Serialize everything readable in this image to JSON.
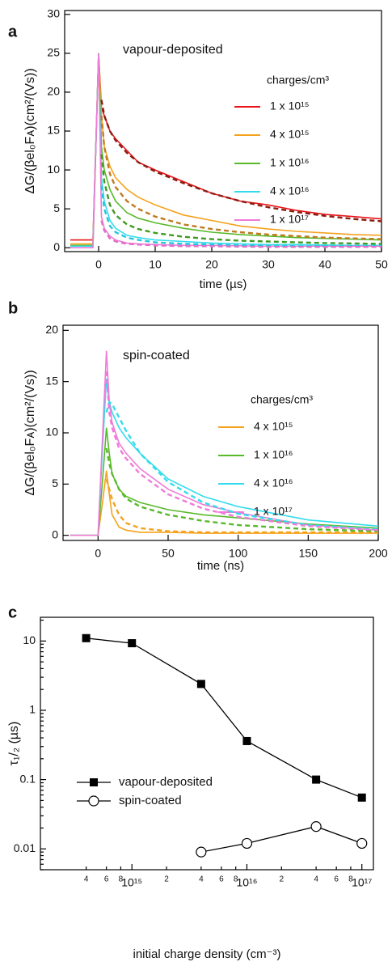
{
  "chart_data": [
    {
      "type": "line",
      "panel": "a",
      "title": "vapour-deposited",
      "legend_title": "charges/cm³",
      "x_label": "time (µs)",
      "y_label": "ΔG/(βel₀Fᴀ)(cm²/(Vs))",
      "x": [
        -5,
        -1,
        0,
        0.5,
        1,
        2,
        3,
        5,
        7,
        10,
        15,
        20,
        25,
        30,
        35,
        40,
        45,
        50
      ],
      "series": [
        {
          "name": "1 x 10¹⁵",
          "color": "#e8141a",
          "values": [
            1,
            1,
            25,
            18,
            17,
            15,
            14,
            12.5,
            11,
            10,
            8.5,
            7,
            6,
            5.5,
            4.8,
            4.3,
            4,
            3.7
          ]
        },
        {
          "name": "4 x 10¹⁵",
          "color": "#f4a21c",
          "values": [
            0.5,
            0.5,
            25,
            17,
            13,
            10.5,
            9,
            7.5,
            6.5,
            5.5,
            4.2,
            3.5,
            2.8,
            2.4,
            2.1,
            1.9,
            1.7,
            1.6
          ]
        },
        {
          "name": "1 x 10¹⁶",
          "color": "#58b92a",
          "values": [
            0.3,
            0.3,
            25,
            13,
            10,
            7.5,
            6,
            4.5,
            3.8,
            3.2,
            2.5,
            2,
            1.7,
            1.5,
            1.3,
            1.2,
            1.1,
            1
          ]
        },
        {
          "name": "4 x 10¹⁶",
          "color": "#33dcec",
          "values": [
            0.2,
            0.2,
            25,
            9,
            6,
            3.5,
            2.5,
            1.6,
            1.3,
            1,
            0.8,
            0.6,
            0.5,
            0.4,
            0.4,
            0.35,
            0.3,
            0.3
          ]
        },
        {
          "name": "1 x 10¹⁷",
          "color": "#f07ad8",
          "values": [
            0,
            0,
            25,
            4,
            2.5,
            1.5,
            1,
            0.6,
            0.5,
            0.4,
            0.3,
            0.3,
            0.25,
            0.2,
            0.2,
            0.2,
            0.2,
            0.2
          ]
        }
      ],
      "fits": [
        {
          "color": "#8a1c10",
          "values": [
            null,
            null,
            null,
            19,
            17,
            15,
            13.8,
            12.2,
            11,
            9.8,
            8.3,
            7,
            6,
            5.2,
            4.6,
            4.1,
            3.7,
            3.4
          ]
        },
        {
          "color": "#c07a20",
          "values": [
            null,
            null,
            null,
            17,
            13,
            9.5,
            7.8,
            6,
            5,
            4,
            3,
            2.4,
            2,
            1.7,
            1.5,
            1.3,
            1.2,
            1.1
          ]
        },
        {
          "color": "#3f9a20",
          "values": [
            null,
            null,
            null,
            12,
            8.5,
            5.5,
            4.2,
            3,
            2.4,
            1.9,
            1.4,
            1.1,
            0.9,
            0.8,
            0.7,
            0.6,
            0.55,
            0.5
          ]
        },
        {
          "color": "#22c8dc",
          "values": [
            null,
            null,
            null,
            8,
            5,
            2.8,
            2,
            1.3,
            1,
            0.7,
            0.5,
            0.4,
            0.3,
            0.25,
            0.2,
            0.2,
            0.2,
            0.2
          ]
        },
        {
          "color": "#e070c8",
          "values": [
            null,
            null,
            null,
            3.5,
            2.2,
            1.2,
            0.8,
            0.5,
            0.4,
            0.3,
            0.2,
            0.2,
            0.15,
            0.1,
            0.1,
            0.1,
            0.1,
            0.1
          ]
        }
      ],
      "xlim": [
        -6,
        50
      ],
      "ylim": [
        -0.5,
        30.5
      ],
      "xticks": [
        0,
        10,
        20,
        30,
        40,
        50
      ],
      "yticks": [
        0,
        5,
        10,
        15,
        20,
        25,
        30
      ]
    },
    {
      "type": "line",
      "panel": "b",
      "title": "spin-coated",
      "legend_title": "charges/cm³",
      "x_label": "time (ns)",
      "y_label": "ΔG/(βel₀Fᴀ)(cm²/(Vs))",
      "x": [
        -20,
        -5,
        0,
        3,
        6,
        8,
        10,
        15,
        20,
        30,
        50,
        75,
        100,
        150,
        200
      ],
      "series": [
        {
          "name": "4 x 10¹⁵",
          "color": "#f4a21c",
          "values": [
            0,
            0,
            0,
            3,
            6.3,
            4,
            2,
            0.8,
            0.5,
            0.3,
            0.3,
            0.2,
            0.2,
            0.2,
            0.2
          ]
        },
        {
          "name": "1 x 10¹⁶",
          "color": "#58b92a",
          "values": [
            0,
            0,
            0,
            5,
            10.5,
            8,
            6,
            4.5,
            3.8,
            3.2,
            2.5,
            2,
            1.7,
            1.1,
            0.7
          ]
        },
        {
          "name": "4 x 10¹⁶",
          "color": "#33dcec",
          "values": [
            0,
            0,
            0,
            8,
            15.3,
            13,
            12,
            10.5,
            9.5,
            8,
            5.5,
            3.8,
            2.8,
            1.5,
            0.9
          ]
        },
        {
          "name": "1 x 10¹⁷",
          "color": "#f07ad8",
          "values": [
            0,
            0,
            0,
            9,
            18,
            13,
            11,
            9,
            8,
            6.5,
            4.5,
            3,
            2.2,
            1,
            0.5
          ]
        }
      ],
      "fits": [
        {
          "color": "#f4a21c",
          "values": [
            null,
            null,
            null,
            null,
            5.5,
            4.5,
            3.5,
            2,
            1.2,
            0.7,
            0.4,
            0.3,
            0.3,
            0.3,
            0.3
          ]
        },
        {
          "color": "#58b92a",
          "values": [
            null,
            null,
            null,
            null,
            8.5,
            7,
            6,
            4.5,
            3.6,
            2.8,
            2,
            1.4,
            1,
            0.6,
            0.4
          ]
        },
        {
          "color": "#33dcec",
          "values": [
            null,
            null,
            null,
            null,
            12,
            13,
            12.8,
            11.5,
            10.2,
            8,
            5.2,
            3.2,
            2.1,
            1,
            0.6
          ]
        },
        {
          "color": "#f07ad8",
          "values": [
            null,
            null,
            null,
            null,
            16,
            12,
            10.5,
            8.5,
            7.5,
            6,
            4,
            2.6,
            1.8,
            0.9,
            0.5
          ]
        }
      ],
      "xlim": [
        -25,
        200
      ],
      "ylim": [
        -0.5,
        20.5
      ],
      "xticks": [
        0,
        50,
        100,
        150,
        200
      ],
      "yticks": [
        0,
        5,
        10,
        15,
        20
      ]
    },
    {
      "type": "scatter",
      "panel": "c",
      "log_x": true,
      "log_y": true,
      "x_label": "initial charge density (cm⁻³)",
      "y_label": "τ₁/₂ (µs)",
      "series": [
        {
          "name": "vapour-deposited",
          "color": "#000000",
          "marker": "filled-square",
          "x": [
            400000000000000.0,
            1000000000000000.0,
            4000000000000000.0,
            1e+16,
            4e+16,
            1e+17
          ],
          "values": [
            11,
            9.3,
            2.4,
            0.36,
            0.1,
            0.055
          ]
        },
        {
          "name": "spin-coated",
          "color": "#000000",
          "marker": "open-circle",
          "x": [
            4000000000000000.0,
            1e+16,
            4e+16,
            1e+17
          ],
          "values": [
            0.009,
            0.012,
            0.021,
            0.012
          ]
        }
      ],
      "xlim": [
        160000000000000.0,
        1.26e+17
      ],
      "ylim": [
        0.005,
        22
      ],
      "xticks": [
        {
          "value": 400000000000000.0,
          "label": "4"
        },
        {
          "value": 600000000000000.0,
          "label": "6"
        },
        {
          "value": 800000000000000.0,
          "label": "8"
        },
        {
          "value": 1000000000000000.0,
          "label": "10¹⁵"
        },
        {
          "value": 2000000000000000.0,
          "label": "2"
        },
        {
          "value": 4000000000000000.0,
          "label": "4"
        },
        {
          "value": 6000000000000000.0,
          "label": "6"
        },
        {
          "value": 8000000000000000.0,
          "label": "8"
        },
        {
          "value": 1e+16,
          "label": "10¹⁶"
        },
        {
          "value": 2e+16,
          "label": "2"
        },
        {
          "value": 4e+16,
          "label": "4"
        },
        {
          "value": 6e+16,
          "label": "6"
        },
        {
          "value": 8e+16,
          "label": "8"
        },
        {
          "value": 1e+17,
          "label": "10¹⁷"
        }
      ],
      "yticks": [
        0.01,
        0.1,
        1,
        10
      ]
    }
  ]
}
